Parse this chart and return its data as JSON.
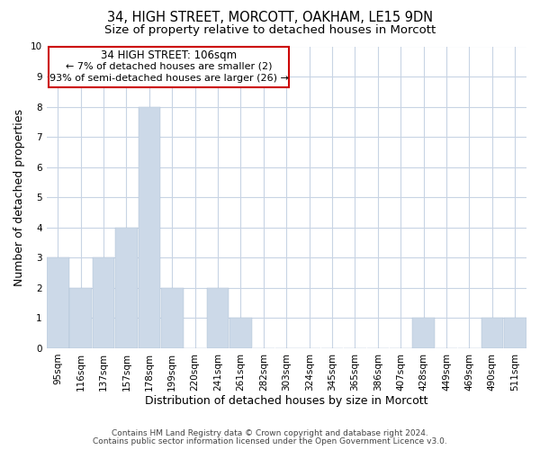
{
  "title": "34, HIGH STREET, MORCOTT, OAKHAM, LE15 9DN",
  "subtitle": "Size of property relative to detached houses in Morcott",
  "xlabel": "Distribution of detached houses by size in Morcott",
  "ylabel": "Number of detached properties",
  "categories": [
    "95sqm",
    "116sqm",
    "137sqm",
    "157sqm",
    "178sqm",
    "199sqm",
    "220sqm",
    "241sqm",
    "261sqm",
    "282sqm",
    "303sqm",
    "324sqm",
    "345sqm",
    "365sqm",
    "386sqm",
    "407sqm",
    "428sqm",
    "449sqm",
    "469sqm",
    "490sqm",
    "511sqm"
  ],
  "values": [
    3,
    2,
    3,
    4,
    8,
    2,
    0,
    2,
    1,
    0,
    0,
    0,
    0,
    0,
    0,
    0,
    1,
    0,
    0,
    1,
    1
  ],
  "bar_color": "#ccd9e8",
  "bar_edge_color": "#aabdd4",
  "ylim": [
    0,
    10
  ],
  "yticks": [
    0,
    1,
    2,
    3,
    4,
    5,
    6,
    7,
    8,
    9,
    10
  ],
  "annotation_title": "34 HIGH STREET: 106sqm",
  "annotation_line1": "← 7% of detached houses are smaller (2)",
  "annotation_line2": "93% of semi-detached houses are larger (26) →",
  "annotation_box_facecolor": "#ffffff",
  "annotation_box_edgecolor": "#cc0000",
  "footer1": "Contains HM Land Registry data © Crown copyright and database right 2024.",
  "footer2": "Contains public sector information licensed under the Open Government Licence v3.0.",
  "grid_color": "#c8d4e4",
  "background_color": "#ffffff",
  "title_fontsize": 10.5,
  "subtitle_fontsize": 9.5,
  "axis_label_fontsize": 9,
  "tick_fontsize": 7.5,
  "annotation_fontsize": 8.5,
  "footer_fontsize": 6.5
}
